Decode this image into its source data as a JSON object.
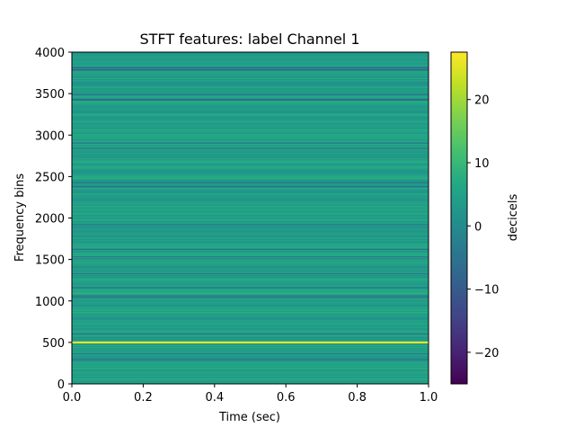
{
  "chart_data": {
    "type": "heatmap",
    "title": "STFT features: label Channel 1",
    "xlabel": "Time (sec)",
    "ylabel": "Frequency bins",
    "xlim": [
      0,
      1
    ],
    "ylim": [
      0,
      4000
    ],
    "x_ticks": [
      "0.0",
      "0.2",
      "0.4",
      "0.6",
      "0.8",
      "1.0"
    ],
    "y_ticks": [
      "0",
      "500",
      "1000",
      "1500",
      "2000",
      "2500",
      "3000",
      "3500",
      "4000"
    ],
    "colorbar": {
      "label": "decicels",
      "range": [
        -25,
        27.5
      ],
      "ticks": [
        "−20",
        "−10",
        "0",
        "10",
        "20"
      ],
      "tick_values": [
        -20,
        -10,
        0,
        10,
        20
      ],
      "colormap": "viridis"
    },
    "peak": {
      "frequency": 500,
      "value": 27.5
    },
    "background_level_range": [
      -5,
      8
    ],
    "grid": false
  }
}
